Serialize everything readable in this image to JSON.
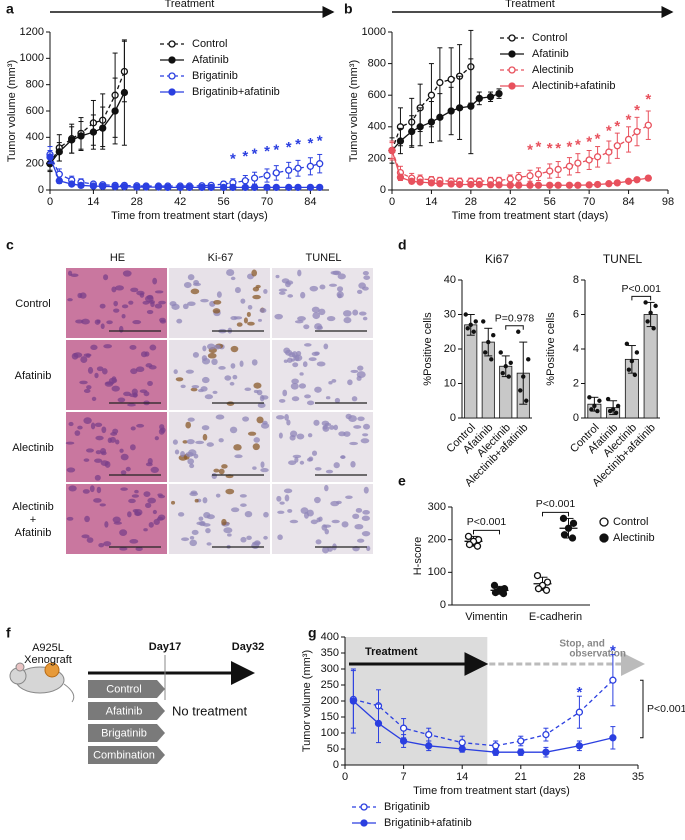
{
  "panel_labels": [
    "a",
    "b",
    "c",
    "d",
    "e",
    "f",
    "g"
  ],
  "chart_data": [
    {
      "type": "line",
      "banner": "Treatment",
      "xlabel": "Time from treatment start (days)",
      "ylabel": "Tumor volume (mm³)",
      "xlim": [
        0,
        90
      ],
      "xticks": [
        0,
        14,
        28,
        42,
        56,
        70,
        84
      ],
      "ylim": [
        0,
        1200
      ],
      "yticks": [
        0,
        200,
        400,
        600,
        800,
        1000,
        1200
      ],
      "legend": "upper left",
      "series": [
        {
          "name": "Control",
          "color": "#111111",
          "dash": true,
          "marker": "open",
          "x": [
            0,
            3,
            7,
            10,
            14,
            17,
            21,
            24
          ],
          "values": [
            200,
            320,
            390,
            430,
            510,
            530,
            720,
            900
          ],
          "errors": [
            60,
            100,
            110,
            120,
            170,
            200,
            320,
            230
          ]
        },
        {
          "name": "Afatinib",
          "color": "#111111",
          "dash": false,
          "marker": "filled",
          "x": [
            0,
            3,
            7,
            10,
            14,
            17,
            21,
            24
          ],
          "values": [
            200,
            290,
            380,
            410,
            440,
            470,
            600,
            740
          ],
          "errors": [
            50,
            70,
            100,
            110,
            130,
            160,
            250,
            400
          ]
        },
        {
          "name": "Brigatinib",
          "color": "#2b3fe0",
          "dash": true,
          "marker": "open",
          "x": [
            0,
            3,
            7,
            10,
            14,
            17,
            21,
            24,
            28,
            31,
            35,
            38,
            42,
            45,
            49,
            52,
            56,
            59,
            63,
            66,
            70,
            73,
            77,
            80,
            84,
            87
          ],
          "values": [
            270,
            120,
            75,
            60,
            45,
            40,
            35,
            35,
            32,
            30,
            30,
            30,
            30,
            30,
            32,
            35,
            45,
            55,
            70,
            90,
            110,
            130,
            150,
            165,
            180,
            200
          ],
          "errors": [
            60,
            40,
            30,
            25,
            15,
            12,
            10,
            10,
            10,
            10,
            10,
            10,
            10,
            10,
            10,
            12,
            20,
            30,
            40,
            45,
            50,
            55,
            60,
            60,
            65,
            70
          ]
        },
        {
          "name": "Brigatinib+afatinib",
          "color": "#2b3fe0",
          "dash": false,
          "marker": "filled",
          "x": [
            0,
            3,
            7,
            10,
            14,
            17,
            21,
            24,
            28,
            31,
            35,
            38,
            42,
            45,
            49,
            52,
            56,
            59,
            63,
            66,
            70,
            73,
            77,
            80,
            84,
            87
          ],
          "values": [
            250,
            70,
            45,
            35,
            30,
            28,
            25,
            25,
            22,
            22,
            22,
            20,
            20,
            20,
            20,
            20,
            20,
            20,
            20,
            20,
            20,
            20,
            20,
            20,
            20,
            20
          ],
          "errors": [
            50,
            20,
            12,
            10,
            8,
            8,
            6,
            6,
            6,
            6,
            6,
            6,
            6,
            6,
            6,
            6,
            6,
            6,
            6,
            6,
            6,
            6,
            6,
            6,
            6,
            6
          ]
        }
      ],
      "stars": {
        "label": "*",
        "color": "#2b3fe0",
        "x": [
          59,
          63,
          66,
          70,
          73,
          77,
          80,
          84,
          87
        ],
        "y": [
          230,
          250,
          270,
          290,
          300,
          320,
          340,
          350,
          370
        ]
      }
    },
    {
      "type": "line",
      "banner": "Treatment",
      "xlabel": "Time from treatment start (days)",
      "ylabel": "Tumor volume (mm³)",
      "xlim": [
        0,
        98
      ],
      "xticks": [
        0,
        14,
        28,
        42,
        56,
        70,
        84,
        98
      ],
      "ylim": [
        0,
        1000
      ],
      "yticks": [
        0,
        200,
        400,
        600,
        800,
        1000
      ],
      "legend": "upper left",
      "series": [
        {
          "name": "Control",
          "color": "#111111",
          "dash": true,
          "marker": "open",
          "x": [
            0,
            3,
            7,
            10,
            14,
            17,
            21,
            24,
            28
          ],
          "values": [
            250,
            400,
            430,
            520,
            600,
            680,
            700,
            720,
            780
          ],
          "errors": [
            80,
            120,
            150,
            150,
            200,
            220,
            200,
            200,
            230
          ]
        },
        {
          "name": "Afatinib",
          "color": "#111111",
          "dash": false,
          "marker": "filled",
          "x": [
            0,
            3,
            7,
            10,
            14,
            17,
            21,
            24,
            28,
            31,
            35,
            38
          ],
          "values": [
            250,
            310,
            370,
            400,
            430,
            460,
            500,
            520,
            530,
            580,
            590,
            610
          ],
          "errors": [
            60,
            80,
            100,
            120,
            130,
            150,
            150,
            200,
            300,
            40,
            30,
            30
          ]
        },
        {
          "name": "Alectinib",
          "color": "#e8515d",
          "dash": true,
          "marker": "open",
          "x": [
            0,
            3,
            7,
            10,
            14,
            17,
            21,
            24,
            28,
            31,
            35,
            38,
            42,
            45,
            49,
            52,
            56,
            59,
            63,
            66,
            70,
            73,
            77,
            80,
            84,
            87,
            91
          ],
          "values": [
            250,
            110,
            75,
            70,
            65,
            60,
            55,
            55,
            55,
            55,
            60,
            60,
            70,
            80,
            90,
            100,
            120,
            130,
            150,
            170,
            190,
            210,
            240,
            280,
            320,
            370,
            410
          ],
          "errors": [
            60,
            40,
            30,
            25,
            20,
            20,
            20,
            20,
            20,
            20,
            20,
            20,
            25,
            30,
            35,
            40,
            45,
            50,
            55,
            60,
            60,
            65,
            70,
            80,
            80,
            90,
            90
          ]
        },
        {
          "name": "Alectinib+afatinib",
          "color": "#e8515d",
          "dash": false,
          "marker": "filled",
          "x": [
            0,
            3,
            7,
            10,
            14,
            17,
            21,
            24,
            28,
            31,
            35,
            38,
            42,
            45,
            49,
            52,
            56,
            59,
            63,
            66,
            70,
            73,
            77,
            80,
            84,
            87,
            91
          ],
          "values": [
            250,
            80,
            55,
            50,
            45,
            40,
            38,
            35,
            35,
            35,
            33,
            32,
            30,
            30,
            30,
            30,
            30,
            30,
            30,
            30,
            32,
            35,
            40,
            45,
            55,
            65,
            75
          ],
          "errors": [
            50,
            20,
            15,
            12,
            10,
            10,
            10,
            8,
            8,
            8,
            8,
            8,
            8,
            8,
            8,
            8,
            8,
            8,
            8,
            8,
            8,
            10,
            10,
            10,
            12,
            12,
            15
          ]
        }
      ],
      "stars": {
        "label": "*",
        "color": "#e8515d",
        "x": [
          49,
          52,
          56,
          59,
          63,
          66,
          70,
          73,
          77,
          80,
          84,
          87,
          91
        ],
        "y": [
          250,
          270,
          260,
          260,
          270,
          280,
          300,
          320,
          370,
          400,
          440,
          500,
          570
        ]
      }
    },
    {
      "type": "bar",
      "title": "Ki67",
      "ylabel": "%Positive cells",
      "color": "#c8c8c8",
      "categories": [
        "Control",
        "Afatinib",
        "Alectinib",
        "Alectinib+afatinib"
      ],
      "values": [
        27,
        22,
        15,
        13
      ],
      "errors": [
        3,
        4,
        3,
        9
      ],
      "points": [
        [
          30,
          28,
          27,
          26,
          25
        ],
        [
          28,
          24,
          22,
          19,
          17
        ],
        [
          19,
          16,
          15,
          13,
          12
        ],
        [
          25,
          17,
          12,
          8,
          5
        ]
      ],
      "ylim": [
        0,
        40
      ],
      "yticks": [
        0,
        10,
        20,
        30,
        40
      ],
      "annotation": "P=0.978"
    },
    {
      "type": "bar",
      "title": "TUNEL",
      "ylabel": "%Positive cells",
      "color": "#c8c8c8",
      "categories": [
        "Control",
        "Afatinib",
        "Alectinib",
        "Alectinib+afatinib"
      ],
      "values": [
        0.8,
        0.6,
        3.4,
        6.0
      ],
      "errors": [
        0.4,
        0.4,
        0.8,
        0.7
      ],
      "points": [
        [
          1.2,
          1.0,
          0.7,
          0.5,
          0.4
        ],
        [
          1.1,
          0.7,
          0.5,
          0.4,
          0.3
        ],
        [
          4.3,
          3.8,
          3.3,
          2.8,
          2.5
        ],
        [
          6.7,
          6.5,
          6.1,
          5.6,
          5.2
        ]
      ],
      "ylim": [
        0,
        8
      ],
      "yticks": [
        0,
        2,
        4,
        6,
        8
      ],
      "annotation": "P<0.001"
    },
    {
      "type": "dot",
      "ylabel": "H-score",
      "categories": [
        "Vimentin",
        "E-cadherin"
      ],
      "ylim": [
        0,
        300
      ],
      "yticks": [
        0,
        100,
        200,
        300
      ],
      "legend": "right",
      "series": [
        {
          "name": "Control",
          "color": "#111111",
          "marker": "open",
          "values": [
            195,
            65
          ],
          "errors": [
            15,
            20
          ],
          "points": [
            [
              210,
              200,
              195,
              185,
              180
            ],
            [
              90,
              70,
              60,
              50,
              45
            ]
          ]
        },
        {
          "name": "Alectinib",
          "color": "#111111",
          "marker": "filled",
          "values": [
            45,
            235
          ],
          "errors": [
            12,
            30
          ],
          "points": [
            [
              60,
              50,
              45,
              38,
              35
            ],
            [
              265,
              250,
              235,
              215,
              205
            ]
          ]
        }
      ],
      "annotations": [
        "P<0.001",
        "P<0.001"
      ]
    },
    {
      "type": "line",
      "xlabel": "Time from treatment start (days)",
      "ylabel": "Tumor volume (mm³)",
      "xlim": [
        0,
        35
      ],
      "xticks": [
        0,
        7,
        14,
        21,
        28,
        35
      ],
      "ylim": [
        0,
        400
      ],
      "yticks": [
        0,
        50,
        100,
        150,
        200,
        250,
        300,
        350,
        400
      ],
      "legend": "below",
      "shade": [
        0,
        17
      ],
      "phases": [
        "Treatment",
        "Stop, and",
        "observation"
      ],
      "series": [
        {
          "name": "Brigatinib",
          "color": "#2b3fe0",
          "dash": true,
          "marker": "open",
          "x": [
            1,
            4,
            7,
            10,
            14,
            18,
            21,
            24,
            28,
            32
          ],
          "values": [
            205,
            185,
            115,
            95,
            70,
            60,
            75,
            95,
            165,
            265
          ],
          "errors": [
            90,
            50,
            30,
            20,
            20,
            15,
            15,
            20,
            50,
            80
          ]
        },
        {
          "name": "Brigatinib+afatinib",
          "color": "#2b3fe0",
          "dash": false,
          "marker": "filled",
          "x": [
            1,
            4,
            7,
            10,
            14,
            18,
            21,
            24,
            28,
            32
          ],
          "values": [
            200,
            130,
            75,
            60,
            50,
            40,
            40,
            40,
            60,
            85
          ],
          "errors": [
            100,
            60,
            20,
            15,
            10,
            10,
            10,
            15,
            15,
            35
          ]
        }
      ],
      "stars": {
        "label": "*",
        "color": "#2b3fe0",
        "x": [
          28,
          32
        ],
        "y": [
          225,
          355
        ]
      },
      "annotation": "P<0.001"
    }
  ],
  "histology": {
    "columns": [
      "HE",
      "Ki-67",
      "TUNEL"
    ],
    "rows": [
      [
        "Control"
      ],
      [
        "Afatinib"
      ],
      [
        "Alectinib"
      ],
      [
        "Alectinib",
        "+",
        "Afatinib"
      ]
    ]
  },
  "schema": {
    "model": [
      "A925L",
      "Xenograft"
    ],
    "days": [
      "Day17",
      "Day32"
    ],
    "groups": [
      "Control",
      "Afatinib",
      "Brigatinib",
      "Combination"
    ],
    "note": "No treatment"
  }
}
